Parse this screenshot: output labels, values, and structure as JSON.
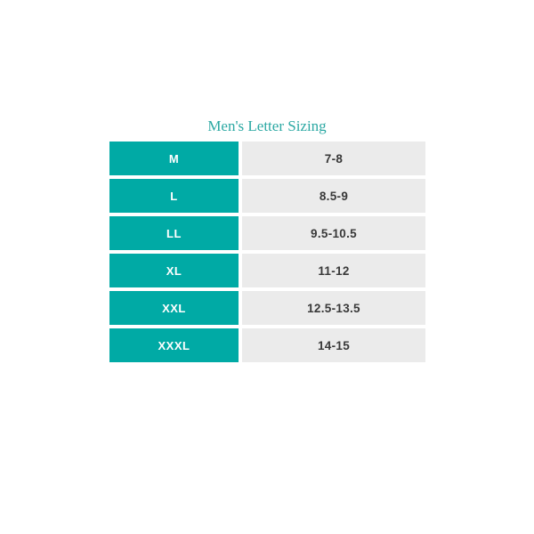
{
  "chart_data": {
    "type": "table",
    "title": "Men's Letter Sizing",
    "rows": [
      [
        "M",
        "7-8"
      ],
      [
        "L",
        "8.5-9"
      ],
      [
        "LL",
        "9.5-10.5"
      ],
      [
        "XL",
        "11-12"
      ],
      [
        "XXL",
        "12.5-13.5"
      ],
      [
        "XXXL",
        "14-15"
      ]
    ]
  },
  "colors": {
    "teal": "#00aaa5",
    "title-teal": "#2ba8a3",
    "cell-gray": "#ebebeb",
    "label-text": "#ffffff",
    "value-text": "#383838",
    "page-bg": "#ffffff"
  }
}
